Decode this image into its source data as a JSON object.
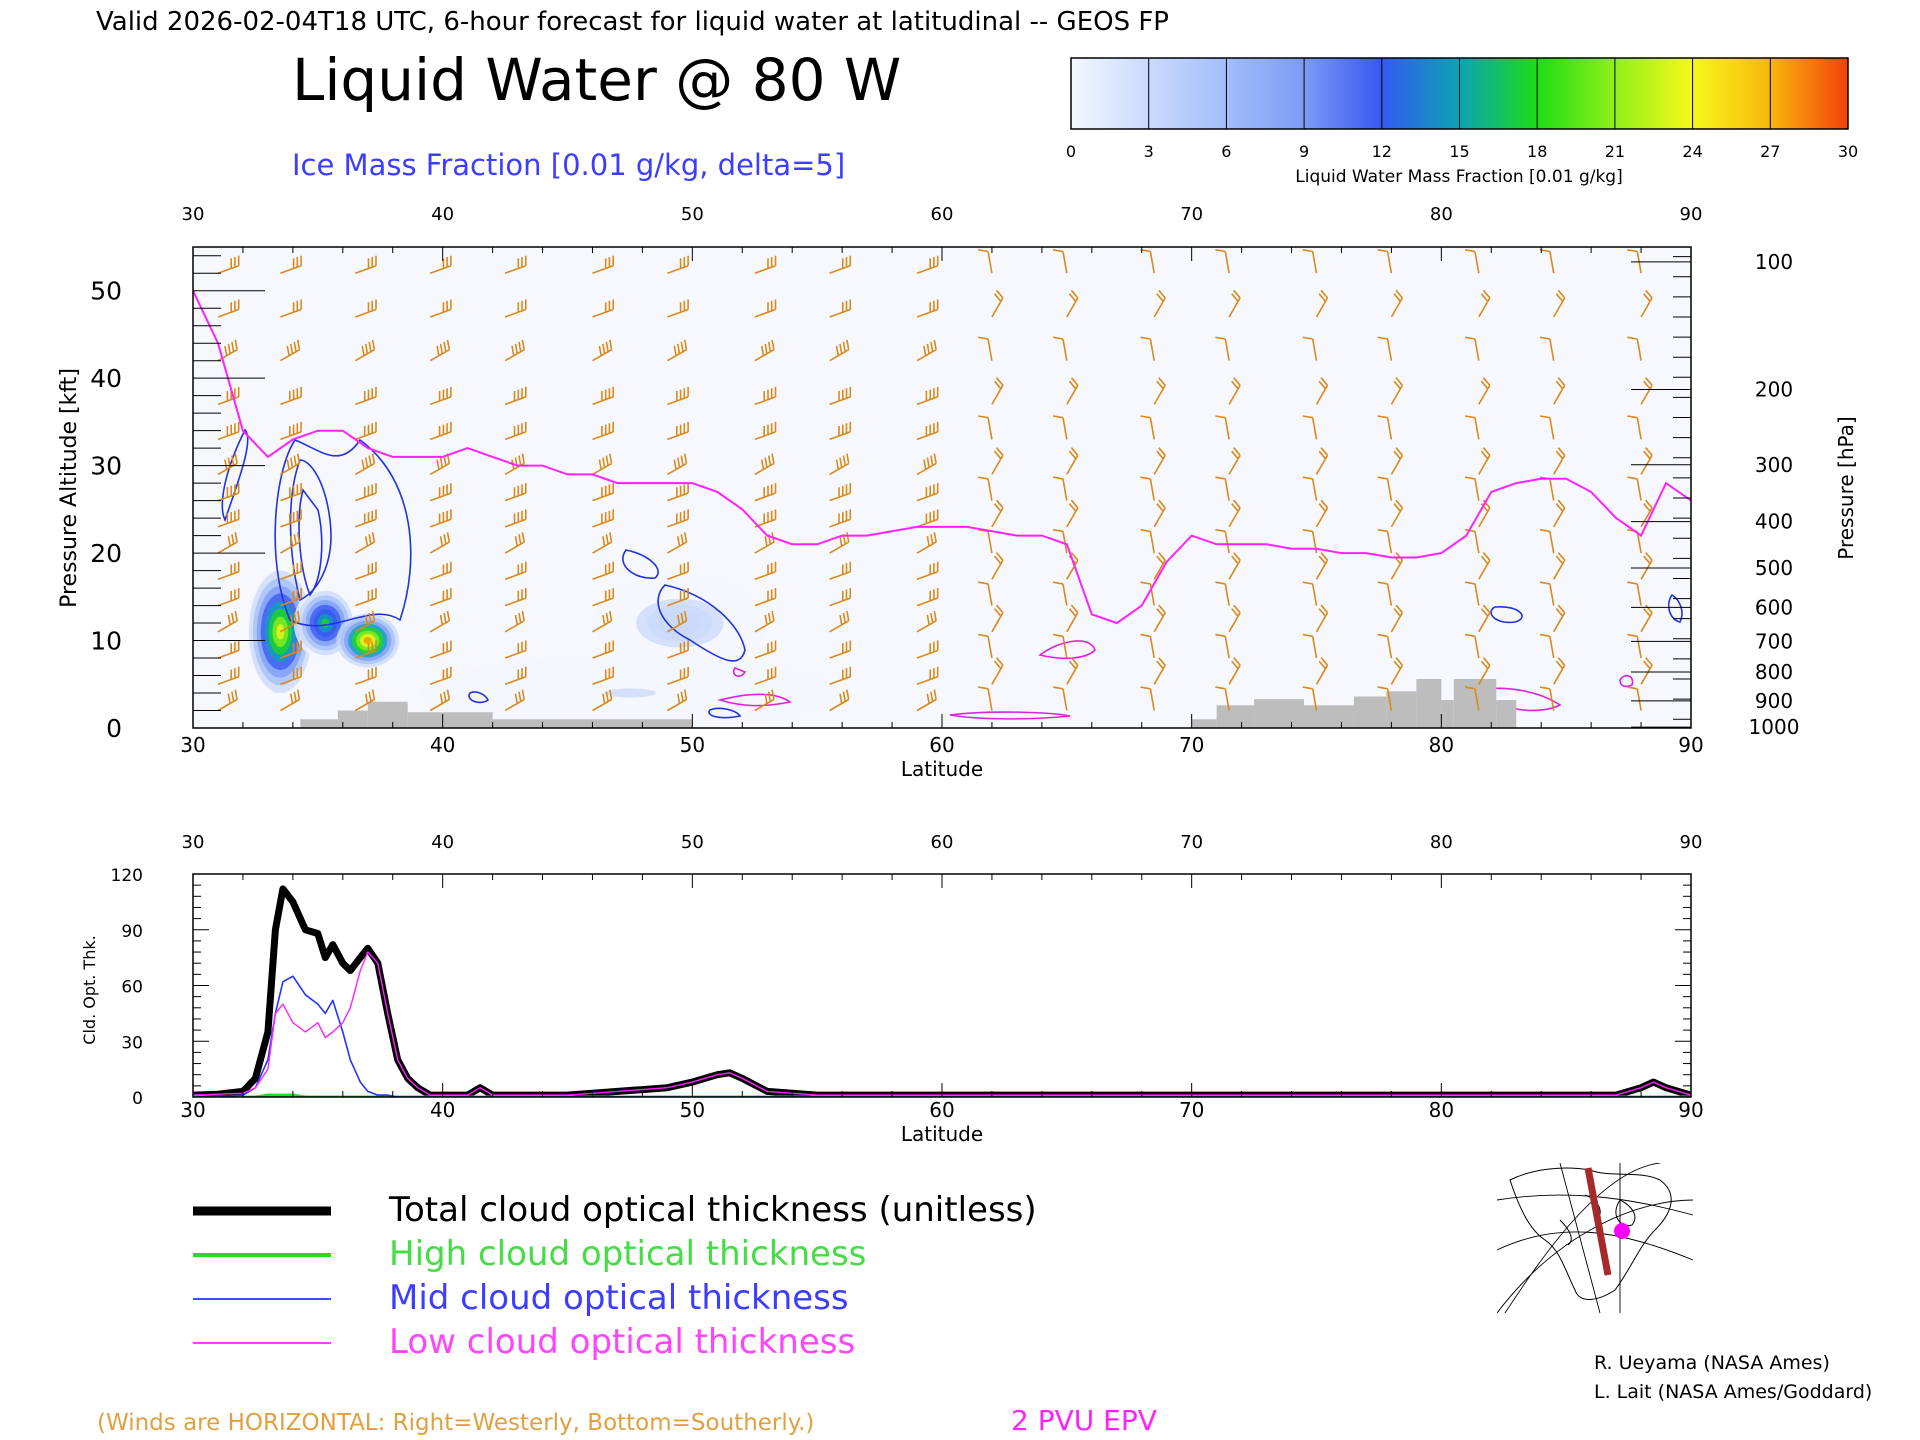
{
  "header": {
    "valid_line": "Valid 2026-02-04T18 UTC, 6-hour forecast for liquid water at latitudinal -- GEOS FP",
    "title": "Liquid Water @ 80 W",
    "subtitle": "Ice Mass Fraction [0.01 g/kg, delta=5]"
  },
  "colorbar": {
    "label": "Liquid Water Mass Fraction [0.01 g/kg]",
    "ticks": [
      "0",
      "3",
      "6",
      "9",
      "12",
      "15",
      "18",
      "21",
      "24",
      "27",
      "30"
    ],
    "colors": [
      "#f4f7fe",
      "#c9dafb",
      "#a3befa",
      "#7c9bf6",
      "#3658f0",
      "#0ba3b5",
      "#1ddc16",
      "#8ff01a",
      "#f7f81b",
      "#f8b70c",
      "#f78906",
      "#f3400b"
    ]
  },
  "credits": {
    "line1": "R. Ueyama (NASA Ames)",
    "line2": "L. Lait (NASA Ames/Goddard)"
  },
  "footer": {
    "winds_note": "(Winds are HORIZONTAL: Right=Westerly, Bottom=Southerly.)",
    "epv_label": "2 PVU EPV"
  },
  "legend": {
    "items": [
      {
        "label": "Total cloud optical thickness (unitless)",
        "color": "#000000"
      },
      {
        "label": "High cloud optical thickness",
        "color": "#22dd22"
      },
      {
        "label": "Mid cloud optical thickness",
        "color": "#2233ff"
      },
      {
        "label": "Low cloud optical thickness",
        "color": "#ff22ff"
      }
    ]
  },
  "chart_data": [
    {
      "type": "heatmap",
      "name": "liquid-water-cross-section",
      "xlabel": "Latitude",
      "ylabel": "Pressure Altitude [kft]",
      "ylabel_right": "Pressure [hPa]",
      "xlim": [
        30,
        90
      ],
      "ylim": [
        0,
        55
      ],
      "x_ticks": [
        "30",
        "40",
        "50",
        "60",
        "70",
        "80",
        "90"
      ],
      "y_ticks": [
        "0",
        "10",
        "20",
        "30",
        "40",
        "50"
      ],
      "pressure_ticks": [
        {
          "label": "100",
          "kft": 53.3
        },
        {
          "label": "200",
          "kft": 38.7
        },
        {
          "label": "300",
          "kft": 30.1
        },
        {
          "label": "400",
          "kft": 23.6
        },
        {
          "label": "500",
          "kft": 18.3
        },
        {
          "label": "600",
          "kft": 13.8
        },
        {
          "label": "700",
          "kft": 9.9
        },
        {
          "label": "800",
          "kft": 6.4
        },
        {
          "label": "900",
          "kft": 3.1
        },
        {
          "label": "1000",
          "kft": 0.1
        }
      ],
      "liquid_water_blobs": [
        {
          "lat": 33.5,
          "kft": 11,
          "peak": 22,
          "rx": 0.9,
          "ry": 5
        },
        {
          "lat": 35.3,
          "kft": 12,
          "peak": 18,
          "rx": 0.9,
          "ry": 3
        },
        {
          "lat": 37.0,
          "kft": 10,
          "peak": 28,
          "rx": 0.9,
          "ry": 2.2
        },
        {
          "lat": 49.5,
          "kft": 12,
          "peak": 5,
          "rx": 2.5,
          "ry": 4
        },
        {
          "lat": 47.5,
          "kft": 4,
          "peak": 3,
          "rx": 6,
          "ry": 3
        }
      ],
      "epv_2pvu": {
        "lat": [
          30,
          31,
          32,
          33,
          34,
          35,
          36,
          37,
          38,
          39,
          40,
          41,
          42,
          43,
          44,
          45,
          46,
          47,
          48,
          49,
          50,
          51,
          52,
          53,
          54,
          55,
          56,
          57,
          58,
          59,
          60,
          61,
          62,
          63,
          64,
          65,
          66,
          67,
          68,
          69,
          70,
          71,
          72,
          73,
          74,
          75,
          76,
          77,
          78,
          79,
          80,
          81,
          82,
          83,
          84,
          85,
          86,
          87,
          88,
          89,
          90
        ],
        "kft": [
          50,
          44,
          34,
          31,
          33,
          34,
          34,
          32,
          31,
          31,
          31,
          32,
          31,
          30,
          30,
          29,
          29,
          28,
          28,
          28,
          28,
          27,
          25,
          22,
          21,
          21,
          22,
          22,
          22.5,
          23,
          23,
          23,
          22.5,
          22,
          22,
          21,
          13,
          12,
          14,
          19,
          22,
          21,
          21,
          21,
          20.5,
          20.5,
          20,
          20,
          19.5,
          19.5,
          20,
          22,
          27,
          28,
          28.5,
          28.5,
          27,
          24,
          22,
          28,
          26
        ]
      },
      "wind_barb_latitudes": [
        31,
        33.5,
        36.5,
        39.5,
        42.5,
        46,
        49,
        52.5,
        55.5,
        59,
        62,
        65,
        68.5,
        71.5,
        75,
        78,
        81.5,
        84.5,
        88
      ],
      "terrain_kft": [
        {
          "lat": [
            34.3,
            35.8
          ],
          "kft": 1.0
        },
        {
          "lat": [
            35.8,
            37.0
          ],
          "kft": 2.0
        },
        {
          "lat": [
            37.0,
            38.6
          ],
          "kft": 3.0
        },
        {
          "lat": [
            38.6,
            42.0
          ],
          "kft": 1.8
        },
        {
          "lat": [
            42.0,
            50.0
          ],
          "kft": 1.0
        },
        {
          "lat": [
            70.0,
            71.0
          ],
          "kft": 1.0
        },
        {
          "lat": [
            71.0,
            72.5
          ],
          "kft": 2.6
        },
        {
          "lat": [
            72.5,
            74.5
          ],
          "kft": 3.3
        },
        {
          "lat": [
            74.5,
            76.5
          ],
          "kft": 2.6
        },
        {
          "lat": [
            76.5,
            77.8
          ],
          "kft": 3.6
        },
        {
          "lat": [
            77.8,
            79.0
          ],
          "kft": 4.2
        },
        {
          "lat": [
            79.0,
            80.0
          ],
          "kft": 5.6
        },
        {
          "lat": [
            80.0,
            80.5
          ],
          "kft": 3.2
        },
        {
          "lat": [
            80.5,
            82.2
          ],
          "kft": 5.6
        },
        {
          "lat": [
            82.2,
            83.0
          ],
          "kft": 3.2
        }
      ]
    },
    {
      "type": "line",
      "name": "cloud-optical-thickness",
      "xlabel": "Latitude",
      "ylabel": "Cld. Opt. Thk.",
      "xlim": [
        30,
        90
      ],
      "ylim": [
        0,
        120
      ],
      "x_ticks": [
        "30",
        "40",
        "50",
        "60",
        "70",
        "80",
        "90"
      ],
      "y_ticks": [
        "0",
        "30",
        "60",
        "90",
        "120"
      ],
      "x": [
        30,
        31,
        32,
        32.5,
        33,
        33.3,
        33.6,
        34,
        34.5,
        35,
        35.3,
        35.6,
        36,
        36.3,
        36.7,
        37,
        37.4,
        37.8,
        38.2,
        38.6,
        39,
        39.5,
        40,
        41,
        41.5,
        42,
        43,
        44,
        45,
        46,
        47,
        48,
        49,
        50,
        51,
        51.5,
        52,
        53,
        55,
        60,
        65,
        70,
        75,
        80,
        85,
        87,
        88,
        88.5,
        89,
        90
      ],
      "series": [
        {
          "name": "Total cloud optical thickness (unitless)",
          "color": "#000000",
          "values": [
            1,
            1.5,
            3,
            10,
            35,
            90,
            112,
            105,
            90,
            88,
            75,
            82,
            72,
            68,
            75,
            80,
            72,
            45,
            20,
            10,
            5,
            1,
            1,
            1,
            5,
            1,
            1,
            1,
            1,
            2,
            3,
            4,
            5,
            8,
            12,
            13,
            10,
            3,
            1,
            1,
            1,
            1,
            1,
            1,
            1,
            1,
            5,
            8,
            5,
            1
          ]
        },
        {
          "name": "High cloud optical thickness",
          "color": "#22dd22",
          "values": [
            0,
            0,
            0,
            0,
            1,
            1,
            1,
            1,
            0,
            0,
            0,
            0,
            0,
            0,
            0,
            0,
            0,
            0,
            0,
            0,
            0,
            0,
            0,
            0,
            0,
            0,
            0,
            0,
            0,
            0,
            0,
            0,
            0,
            0,
            0,
            0,
            0,
            0,
            0,
            0,
            0,
            0,
            0,
            0,
            0,
            0,
            0,
            0,
            0,
            0
          ]
        },
        {
          "name": "Mid cloud optical thickness",
          "color": "#2233ff",
          "values": [
            0,
            0,
            1,
            5,
            20,
            45,
            62,
            65,
            55,
            50,
            45,
            52,
            35,
            20,
            8,
            3,
            1,
            1,
            0,
            0,
            0,
            0,
            0,
            0,
            0,
            0,
            0,
            0,
            0,
            0,
            0,
            0,
            0,
            0,
            0,
            0,
            0,
            0,
            0,
            0,
            0,
            0,
            0,
            0,
            0,
            0,
            0,
            0,
            0,
            0
          ]
        },
        {
          "name": "Low cloud optical thickness",
          "color": "#ff22ff",
          "values": [
            1,
            1.5,
            2,
            5,
            15,
            45,
            50,
            40,
            35,
            40,
            32,
            35,
            40,
            48,
            68,
            78,
            72,
            45,
            20,
            10,
            5,
            1,
            1,
            1,
            5,
            1,
            1,
            1,
            1,
            2,
            3,
            4,
            5,
            8,
            12,
            13,
            10,
            3,
            1,
            1,
            1,
            1,
            1,
            1,
            1,
            1,
            5,
            8,
            5,
            1
          ]
        }
      ]
    }
  ]
}
